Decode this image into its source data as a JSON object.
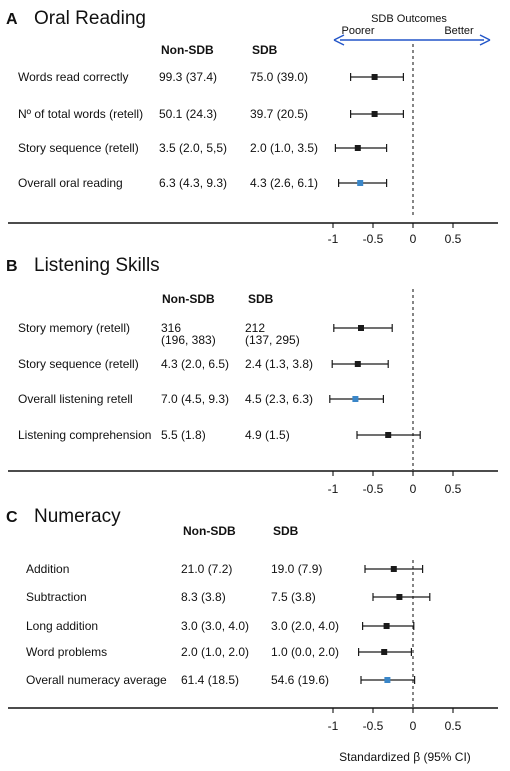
{
  "chart_data": [
    {
      "type": "forest",
      "panel_letter": "A",
      "title": "Oral Reading",
      "column_headers": [
        "Non-SDB",
        "SDB"
      ],
      "header": {
        "label": "SDB Outcomes",
        "left": "Poorer",
        "right": "Better"
      },
      "xlim": [
        -1.2,
        0.75
      ],
      "x_ticks": [
        "-1",
        "-0.5",
        "0",
        "0.5"
      ],
      "rows": [
        {
          "label": "Words read correctly",
          "nonsdb": [
            "99.3 (37.4)"
          ],
          "sdb": [
            "75.0 (39.0)"
          ],
          "beta": -0.48,
          "ci": [
            -0.78,
            -0.12
          ],
          "overall": false
        },
        {
          "label": "Nº of total words (retell)",
          "nonsdb": [
            "50.1 (24.3)"
          ],
          "sdb": [
            "39.7 (20.5)"
          ],
          "beta": -0.48,
          "ci": [
            -0.78,
            -0.12
          ],
          "overall": false
        },
        {
          "label": "Story sequence (retell)",
          "nonsdb": [
            "3.5 (2.0, 5,5)"
          ],
          "sdb": [
            "2.0 (1.0, 3.5)"
          ],
          "beta": -0.69,
          "ci": [
            -0.97,
            -0.33
          ],
          "overall": false
        },
        {
          "label": "Overall oral reading",
          "nonsdb": [
            "6.3 (4.3, 9.3)"
          ],
          "sdb": [
            "4.3 (2.6, 6.1)"
          ],
          "beta": -0.66,
          "ci": [
            -0.93,
            -0.33
          ],
          "overall": true
        }
      ]
    },
    {
      "type": "forest",
      "panel_letter": "B",
      "title": "Listening Skills",
      "column_headers": [
        "Non-SDB",
        "SDB"
      ],
      "xlim": [
        -1.2,
        0.75
      ],
      "x_ticks": [
        "-1",
        "-0.5",
        "0",
        "0.5"
      ],
      "rows": [
        {
          "label": "Story memory (retell)",
          "nonsdb": [
            "316",
            "(196, 383)"
          ],
          "sdb": [
            "212",
            "(137, 295)"
          ],
          "beta": -0.65,
          "ci": [
            -0.99,
            -0.26
          ],
          "overall": false
        },
        {
          "label": "Story sequence (retell)",
          "nonsdb": [
            "4.3 (2.0, 6.5)"
          ],
          "sdb": [
            "2.4 (1.3, 3.8)"
          ],
          "beta": -0.69,
          "ci": [
            -1.01,
            -0.31
          ],
          "overall": false
        },
        {
          "label": "Overall listening retell",
          "nonsdb": [
            "7.0 (4.5, 9.3)"
          ],
          "sdb": [
            "4.5 (2.3, 6.3)"
          ],
          "beta": -0.72,
          "ci": [
            -1.04,
            -0.37
          ],
          "overall": true
        },
        {
          "label": "Listening comprehension",
          "nonsdb": [
            "5.5 (1.8)"
          ],
          "sdb": [
            "4.9 (1.5)"
          ],
          "beta": -0.31,
          "ci": [
            -0.7,
            0.09
          ],
          "overall": false
        }
      ]
    },
    {
      "type": "forest",
      "panel_letter": "C",
      "title": "Numeracy",
      "column_headers": [
        "Non-SDB",
        "SDB"
      ],
      "xlim": [
        -1.2,
        0.75
      ],
      "x_ticks": [
        "-1",
        "-0.5",
        "0",
        "0.5"
      ],
      "xlabel": "Standardized β (95% CI)",
      "rows": [
        {
          "label": "Addition",
          "nonsdb": [
            "21.0 (7.2)"
          ],
          "sdb": [
            "19.0 (7.9)"
          ],
          "beta": -0.24,
          "ci": [
            -0.6,
            0.12
          ],
          "overall": false
        },
        {
          "label": "Subtraction",
          "nonsdb": [
            "8.3 (3.8)"
          ],
          "sdb": [
            "7.5 (3.8)"
          ],
          "beta": -0.17,
          "ci": [
            -0.5,
            0.21
          ],
          "overall": false
        },
        {
          "label": "Long addition",
          "nonsdb": [
            "3.0 (3.0, 4.0)"
          ],
          "sdb": [
            "3.0 (2.0, 4.0)"
          ],
          "beta": -0.33,
          "ci": [
            -0.63,
            0.01
          ],
          "overall": false
        },
        {
          "label": "Word problems",
          "nonsdb": [
            "2.0 (1.0, 2.0)"
          ],
          "sdb": [
            "1.0 (0.0, 2.0)"
          ],
          "beta": -0.36,
          "ci": [
            -0.68,
            -0.02
          ],
          "overall": false
        },
        {
          "label": "Overall numeracy average",
          "nonsdb": [
            "61.4 (18.5)"
          ],
          "sdb": [
            "54.6 (19.6)"
          ],
          "beta": -0.32,
          "ci": [
            -0.65,
            0.02
          ],
          "overall": true
        }
      ]
    }
  ],
  "colors": {
    "marker": "#1a1a1a",
    "overall_marker": "#3a86c8",
    "arrow": "#2255c8",
    "axis": "#111111"
  }
}
